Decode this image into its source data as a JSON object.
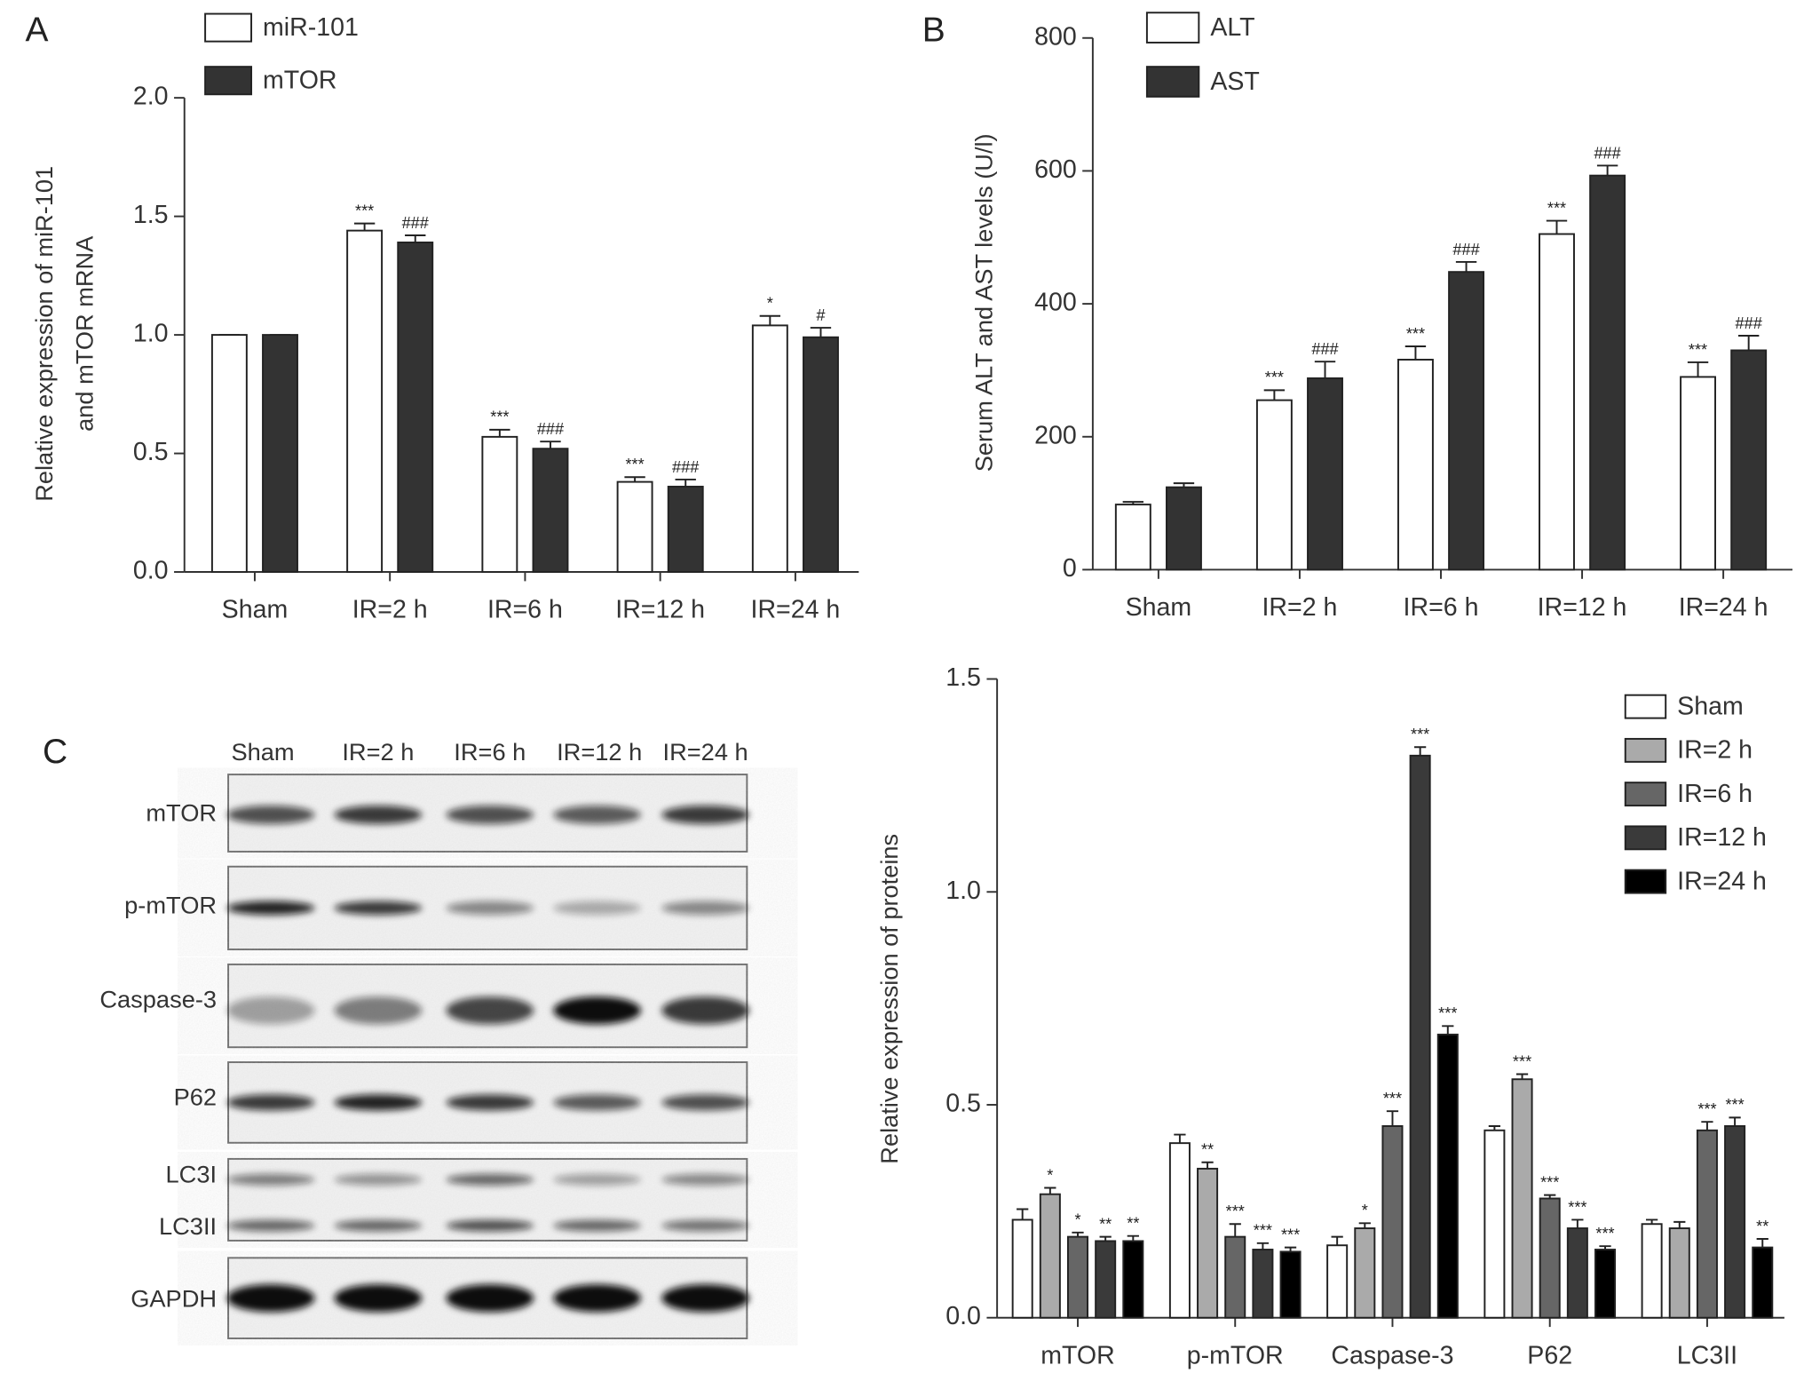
{
  "chart_data": [
    {
      "type": "bar",
      "panel_label": "A",
      "ylabel": [
        "Relative expression of miR-101",
        "and mTOR mRNA"
      ],
      "categories": [
        "Sham",
        "IR=2 h",
        "IR=6 h",
        "IR=12 h",
        "IR=24 h"
      ],
      "series": [
        {
          "name": "miR-101",
          "color": "#ffffff",
          "values": [
            1.0,
            1.44,
            0.57,
            0.38,
            1.04
          ],
          "errors": [
            0,
            0.03,
            0.03,
            0.02,
            0.04
          ],
          "annotations": [
            null,
            "***",
            "***",
            "***",
            "*"
          ]
        },
        {
          "name": "mTOR",
          "color": "#333333",
          "values": [
            1.0,
            1.39,
            0.52,
            0.36,
            0.99
          ],
          "errors": [
            0,
            0.03,
            0.03,
            0.03,
            0.04
          ],
          "annotations": [
            null,
            "###",
            "###",
            "###",
            "#"
          ]
        }
      ],
      "ylim": [
        0,
        2
      ],
      "yticks": [
        {
          "value": 0,
          "label": "0.0"
        },
        {
          "value": 0.5,
          "label": "0.5"
        },
        {
          "value": 1,
          "label": "1.0"
        },
        {
          "value": 1.5,
          "label": "1.5"
        },
        {
          "value": 2,
          "label": "2.0"
        }
      ]
    },
    {
      "type": "bar",
      "panel_label": "B",
      "ylabel": [
        "Serum ALT and AST levels (U/l)"
      ],
      "categories": [
        "Sham",
        "IR=2 h",
        "IR=6 h",
        "IR=12 h",
        "IR=24 h"
      ],
      "series": [
        {
          "name": "ALT",
          "color": "#ffffff",
          "values": [
            98,
            255,
            316,
            505,
            290
          ],
          "errors": [
            4,
            15,
            20,
            20,
            22
          ],
          "annotations": [
            null,
            "***",
            "***",
            "***",
            "***"
          ]
        },
        {
          "name": "AST",
          "color": "#333333",
          "values": [
            124,
            288,
            448,
            593,
            330
          ],
          "errors": [
            6,
            25,
            15,
            15,
            22
          ],
          "annotations": [
            null,
            "###",
            "###",
            "###",
            "###"
          ]
        }
      ],
      "ylim": [
        0,
        800
      ],
      "yticks": [
        0,
        200,
        400,
        600,
        800
      ]
    },
    {
      "type": "bar",
      "ylabel": [
        "Relative expression of proteins"
      ],
      "categories": [
        "mTOR",
        "p-mTOR",
        "Caspase-3",
        "P62",
        "LC3II"
      ],
      "series": [
        {
          "name": "Sham",
          "color": "#ffffff",
          "values": [
            0.23,
            0.41,
            0.17,
            0.44,
            0.22
          ],
          "errors": [
            0.025,
            0.02,
            0.02,
            0.01,
            0.01
          ],
          "annotations": [
            null,
            null,
            null,
            null,
            null
          ]
        },
        {
          "name": "IR=2 h",
          "color": "#aaaaaa",
          "values": [
            0.29,
            0.35,
            0.21,
            0.56,
            0.21
          ],
          "errors": [
            0.015,
            0.015,
            0.012,
            0.012,
            0.015
          ],
          "annotations": [
            "*",
            "**",
            "*",
            "***",
            null
          ]
        },
        {
          "name": "IR=6 h",
          "color": "#666666",
          "values": [
            0.19,
            0.19,
            0.45,
            0.28,
            0.44
          ],
          "errors": [
            0.01,
            0.03,
            0.035,
            0.008,
            0.02
          ],
          "annotations": [
            "*",
            "***",
            "***",
            "***",
            "***"
          ]
        },
        {
          "name": "IR=12 h",
          "color": "#3a3a3a",
          "values": [
            0.18,
            0.16,
            1.32,
            0.21,
            0.45
          ],
          "errors": [
            0.01,
            0.015,
            0.02,
            0.02,
            0.02
          ],
          "annotations": [
            "**",
            "***",
            "***",
            "***",
            "***"
          ]
        },
        {
          "name": "IR=24 h",
          "color": "#000000",
          "values": [
            0.18,
            0.155,
            0.665,
            0.16,
            0.165
          ],
          "errors": [
            0.012,
            0.01,
            0.02,
            0.008,
            0.02
          ],
          "annotations": [
            "**",
            "***",
            "***",
            "***",
            "**"
          ]
        }
      ],
      "ylim": [
        0,
        1.5
      ],
      "yticks": [
        {
          "value": 0,
          "label": "0.0"
        },
        {
          "value": 0.5,
          "label": "0.5"
        },
        {
          "value": 1,
          "label": "1.0"
        },
        {
          "value": 1.5,
          "label": "1.5"
        }
      ],
      "legend": "upper right"
    }
  ],
  "blot": {
    "panel_label": "C",
    "lanes": [
      "Sham",
      "IR=2 h",
      "IR=6 h",
      "IR=12 h",
      "IR=24 h"
    ],
    "rows": [
      "mTOR",
      "p-mTOR",
      "Caspase-3",
      "P62",
      "LC3I",
      "LC3II",
      "GAPDH"
    ]
  }
}
